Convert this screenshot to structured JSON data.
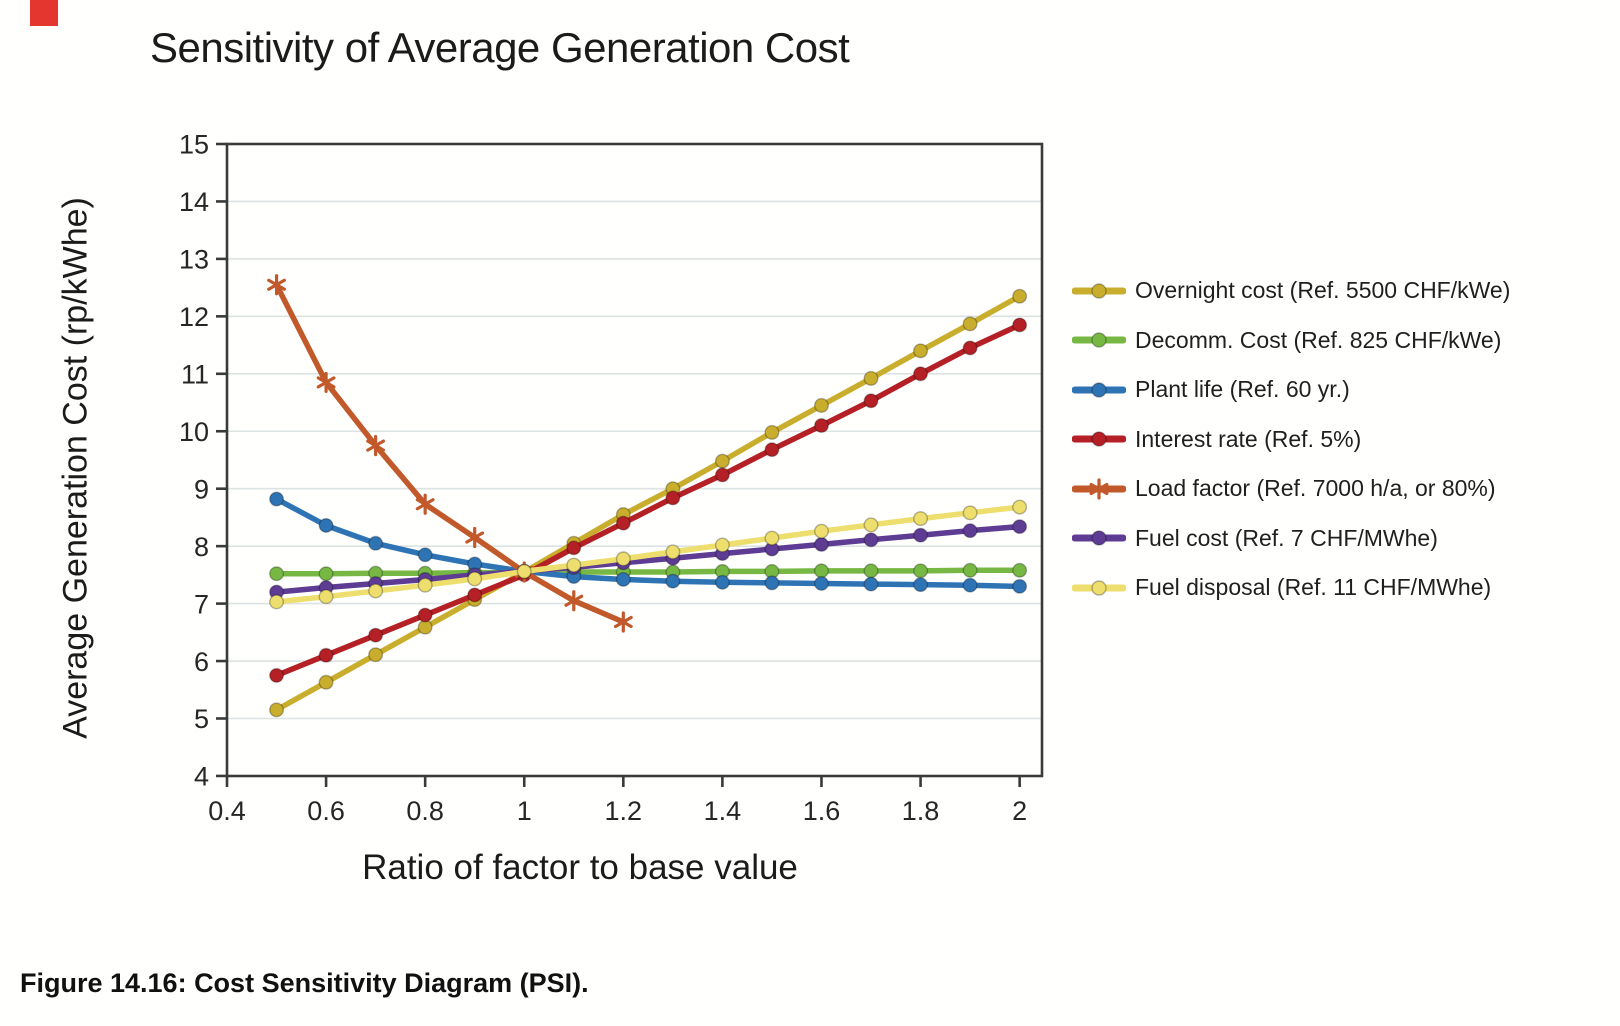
{
  "page": {
    "background": "#FFFFFE"
  },
  "decoration": {
    "top_left_box_color": "#E4352E"
  },
  "chart_data": {
    "type": "line",
    "title": "Sensitivity of Average Generation Cost",
    "xlabel": "Ratio of factor to base value",
    "ylabel": "Average Generation Cost (rp/kWhe)",
    "caption": "Figure 14.16: Cost Sensitivity Diagram (PSI).",
    "xlim": [
      0.4,
      2.045
    ],
    "ylim": [
      4,
      15
    ],
    "x_tick_values": [
      0.4,
      0.6,
      0.8,
      1,
      1.2,
      1.4,
      1.6,
      1.8,
      2
    ],
    "x_tick_labels": [
      "0.4",
      "0.6",
      "0.8",
      "1",
      "1.2",
      "1.4",
      "1.6",
      "1.8",
      "2"
    ],
    "y_tick_values": [
      4,
      5,
      6,
      7,
      8,
      9,
      10,
      11,
      12,
      13,
      14,
      15
    ],
    "grid": true,
    "grid_color": "#DCE3E3",
    "axis_color": "#3A3A3A",
    "tick_label_color": "#262626",
    "legend_position": "right",
    "base_point": {
      "x": 1.0,
      "y": 7.55
    },
    "series": [
      {
        "name": "Overnight cost (Ref. 5500 CHF/kWe)",
        "color": "#C9AE2D",
        "marker": "circle",
        "x": [
          0.5,
          0.6,
          0.7,
          0.8,
          0.9,
          1.0,
          1.1,
          1.2,
          1.3,
          1.4,
          1.5,
          1.6,
          1.7,
          1.8,
          1.9,
          2.0
        ],
        "values": [
          5.15,
          5.63,
          6.11,
          6.59,
          7.07,
          7.55,
          8.05,
          8.55,
          9.0,
          9.48,
          9.98,
          10.45,
          10.92,
          11.4,
          11.87,
          12.35
        ]
      },
      {
        "name": "Decomm. Cost (Ref. 825 CHF/kWe)",
        "color": "#76B843",
        "marker": "circle",
        "x": [
          0.5,
          0.6,
          0.7,
          0.8,
          0.9,
          1.0,
          1.1,
          1.2,
          1.3,
          1.4,
          1.5,
          1.6,
          1.7,
          1.8,
          1.9,
          2.0
        ],
        "values": [
          7.52,
          7.52,
          7.53,
          7.53,
          7.54,
          7.54,
          7.55,
          7.55,
          7.55,
          7.56,
          7.56,
          7.57,
          7.57,
          7.57,
          7.58,
          7.58
        ]
      },
      {
        "name": "Plant life (Ref. 60 yr.)",
        "color": "#2E74B5",
        "marker": "circle",
        "x": [
          0.5,
          0.6,
          0.7,
          0.8,
          0.9,
          1.0,
          1.1,
          1.2,
          1.3,
          1.4,
          1.5,
          1.6,
          1.7,
          1.8,
          1.9,
          2.0
        ],
        "values": [
          8.82,
          8.36,
          8.05,
          7.85,
          7.69,
          7.56,
          7.47,
          7.42,
          7.39,
          7.37,
          7.36,
          7.35,
          7.34,
          7.33,
          7.32,
          7.3
        ]
      },
      {
        "name": "Interest rate (Ref. 5%)",
        "color": "#B42025",
        "marker": "circle",
        "x": [
          0.5,
          0.6,
          0.7,
          0.8,
          0.9,
          1.0,
          1.1,
          1.2,
          1.3,
          1.4,
          1.5,
          1.6,
          1.7,
          1.8,
          1.9,
          2.0
        ],
        "values": [
          5.75,
          6.1,
          6.45,
          6.8,
          7.15,
          7.5,
          7.97,
          8.4,
          8.84,
          9.24,
          9.68,
          10.1,
          10.53,
          11.0,
          11.45,
          11.85
        ]
      },
      {
        "name": "Load factor (Ref. 7000 h/a, or 80%)",
        "color": "#C2592B",
        "marker": "asterisk",
        "x": [
          0.5,
          0.6,
          0.7,
          0.8,
          0.9,
          1.0,
          1.1,
          1.2
        ],
        "values": [
          12.55,
          10.85,
          9.75,
          8.73,
          8.15,
          7.55,
          7.05,
          6.68
        ]
      },
      {
        "name": "Fuel cost (Ref. 7 CHF/MWhe)",
        "color": "#5E3C94",
        "marker": "circle",
        "x": [
          0.5,
          0.6,
          0.7,
          0.8,
          0.9,
          1.0,
          1.1,
          1.2,
          1.3,
          1.4,
          1.5,
          1.6,
          1.7,
          1.8,
          1.9,
          2.0
        ],
        "values": [
          7.2,
          7.28,
          7.35,
          7.42,
          7.5,
          7.56,
          7.63,
          7.71,
          7.79,
          7.87,
          7.95,
          8.03,
          8.11,
          8.19,
          8.27,
          8.34
        ]
      },
      {
        "name": "Fuel disposal  (Ref. 11 CHF/MWhe)",
        "color": "#EDDE6D",
        "marker": "circle",
        "x": [
          0.5,
          0.6,
          0.7,
          0.8,
          0.9,
          1.0,
          1.1,
          1.2,
          1.3,
          1.4,
          1.5,
          1.6,
          1.7,
          1.8,
          1.9,
          2.0
        ],
        "values": [
          7.03,
          7.12,
          7.22,
          7.32,
          7.43,
          7.56,
          7.67,
          7.78,
          7.9,
          8.02,
          8.14,
          8.26,
          8.37,
          8.48,
          8.58,
          8.68
        ]
      }
    ]
  }
}
